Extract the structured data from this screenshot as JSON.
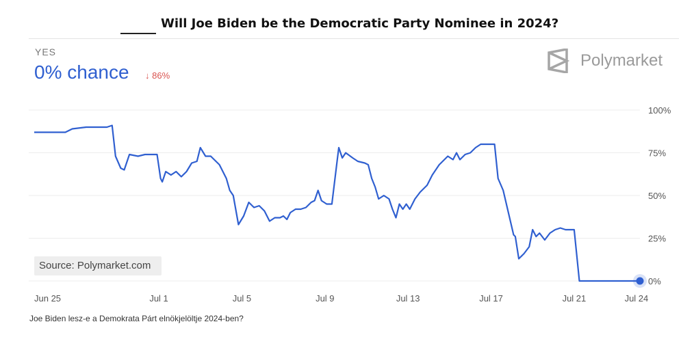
{
  "header": {
    "title": "Will Joe Biden be the Democratic Party Nominee in 2024?"
  },
  "market": {
    "outcome": "YES",
    "chance_text": "0% chance",
    "delta_text": "↓ 86%"
  },
  "brand": {
    "name": "Polymarket",
    "icon": "polymarket-logo-icon"
  },
  "source": {
    "text": "Source: Polymarket.com"
  },
  "caption": "Joe Biden lesz-e a Demokrata Párt elnökjelöltje 2024-ben?",
  "colors": {
    "line": "#2f5fd0",
    "delta": "#d9534f",
    "grid": "#ececec"
  },
  "chart_data": {
    "type": "line",
    "title": "Will Joe Biden be the Democratic Party Nominee in 2024?",
    "xlabel": "",
    "ylabel": "",
    "ylim": [
      0,
      100
    ],
    "y_ticks": [
      100,
      75,
      50,
      25,
      0
    ],
    "y_tick_labels": [
      "100%",
      "75%",
      "50%",
      "25%",
      "0%"
    ],
    "x_ticks": [
      "Jun 25",
      "Jul 1",
      "Jul 5",
      "Jul 9",
      "Jul 13",
      "Jul 17",
      "Jul 21",
      "Jul 24"
    ],
    "x_tick_dates": [
      "2024-06-25",
      "2024-07-01",
      "2024-07-05",
      "2024-07-09",
      "2024-07-13",
      "2024-07-17",
      "2024-07-21",
      "2024-07-24"
    ],
    "grid": true,
    "series": [
      {
        "values": [
          [
            "2024-06-25T00:00",
            87
          ],
          [
            "2024-06-26T12:00",
            87
          ],
          [
            "2024-06-26T20:00",
            89
          ],
          [
            "2024-06-27T12:00",
            90
          ],
          [
            "2024-06-28T12:00",
            90
          ],
          [
            "2024-06-28T18:00",
            91
          ],
          [
            "2024-06-28T22:00",
            73
          ],
          [
            "2024-06-29T04:00",
            66
          ],
          [
            "2024-06-29T08:00",
            65
          ],
          [
            "2024-06-29T14:00",
            74
          ],
          [
            "2024-06-30T00:00",
            73
          ],
          [
            "2024-06-30T08:00",
            74
          ],
          [
            "2024-06-30T14:00",
            74
          ],
          [
            "2024-06-30T22:00",
            74
          ],
          [
            "2024-07-01T02:00",
            60
          ],
          [
            "2024-07-01T04:00",
            58
          ],
          [
            "2024-07-01T08:00",
            64
          ],
          [
            "2024-07-01T14:00",
            62
          ],
          [
            "2024-07-01T20:00",
            64
          ],
          [
            "2024-07-02T02:00",
            61
          ],
          [
            "2024-07-02T08:00",
            64
          ],
          [
            "2024-07-02T14:00",
            69
          ],
          [
            "2024-07-02T20:00",
            70
          ],
          [
            "2024-07-03T00:00",
            78
          ],
          [
            "2024-07-03T06:00",
            73
          ],
          [
            "2024-07-03T12:00",
            73
          ],
          [
            "2024-07-03T22:00",
            68
          ],
          [
            "2024-07-04T06:00",
            60
          ],
          [
            "2024-07-04T10:00",
            53
          ],
          [
            "2024-07-04T14:00",
            50
          ],
          [
            "2024-07-04T20:00",
            33
          ],
          [
            "2024-07-05T02:00",
            38
          ],
          [
            "2024-07-05T08:00",
            46
          ],
          [
            "2024-07-05T14:00",
            43
          ],
          [
            "2024-07-05T20:00",
            44
          ],
          [
            "2024-07-06T02:00",
            41
          ],
          [
            "2024-07-06T08:00",
            35
          ],
          [
            "2024-07-06T14:00",
            37
          ],
          [
            "2024-07-06T20:00",
            37
          ],
          [
            "2024-07-07T00:00",
            38
          ],
          [
            "2024-07-07T04:00",
            36
          ],
          [
            "2024-07-07T08:00",
            40
          ],
          [
            "2024-07-07T14:00",
            42
          ],
          [
            "2024-07-07T20:00",
            42
          ],
          [
            "2024-07-08T02:00",
            43
          ],
          [
            "2024-07-08T08:00",
            46
          ],
          [
            "2024-07-08T12:00",
            47
          ],
          [
            "2024-07-08T16:00",
            53
          ],
          [
            "2024-07-08T20:00",
            47
          ],
          [
            "2024-07-09T02:00",
            45
          ],
          [
            "2024-07-09T08:00",
            45
          ],
          [
            "2024-07-09T14:00",
            70
          ],
          [
            "2024-07-09T16:00",
            78
          ],
          [
            "2024-07-09T20:00",
            72
          ],
          [
            "2024-07-10T00:00",
            75
          ],
          [
            "2024-07-10T08:00",
            72
          ],
          [
            "2024-07-10T14:00",
            70
          ],
          [
            "2024-07-10T22:00",
            69
          ],
          [
            "2024-07-11T02:00",
            68
          ],
          [
            "2024-07-11T06:00",
            60
          ],
          [
            "2024-07-11T10:00",
            55
          ],
          [
            "2024-07-11T14:00",
            48
          ],
          [
            "2024-07-11T20:00",
            50
          ],
          [
            "2024-07-12T02:00",
            48
          ],
          [
            "2024-07-12T06:00",
            42
          ],
          [
            "2024-07-12T10:00",
            37
          ],
          [
            "2024-07-12T14:00",
            45
          ],
          [
            "2024-07-12T18:00",
            42
          ],
          [
            "2024-07-12T22:00",
            45
          ],
          [
            "2024-07-13T02:00",
            42
          ],
          [
            "2024-07-13T08:00",
            48
          ],
          [
            "2024-07-13T14:00",
            52
          ],
          [
            "2024-07-13T22:00",
            56
          ],
          [
            "2024-07-14T04:00",
            62
          ],
          [
            "2024-07-14T12:00",
            68
          ],
          [
            "2024-07-14T22:00",
            73
          ],
          [
            "2024-07-15T04:00",
            71
          ],
          [
            "2024-07-15T08:00",
            75
          ],
          [
            "2024-07-15T12:00",
            71
          ],
          [
            "2024-07-15T18:00",
            74
          ],
          [
            "2024-07-16T00:00",
            75
          ],
          [
            "2024-07-16T06:00",
            78
          ],
          [
            "2024-07-16T12:00",
            80
          ],
          [
            "2024-07-16T20:00",
            80
          ],
          [
            "2024-07-17T04:00",
            80
          ],
          [
            "2024-07-17T08:00",
            60
          ],
          [
            "2024-07-17T14:00",
            53
          ],
          [
            "2024-07-17T20:00",
            40
          ],
          [
            "2024-07-18T02:00",
            27
          ],
          [
            "2024-07-18T04:00",
            26
          ],
          [
            "2024-07-18T08:00",
            13
          ],
          [
            "2024-07-18T14:00",
            16
          ],
          [
            "2024-07-18T20:00",
            20
          ],
          [
            "2024-07-19T00:00",
            30
          ],
          [
            "2024-07-19T04:00",
            26
          ],
          [
            "2024-07-19T08:00",
            28
          ],
          [
            "2024-07-19T14:00",
            24
          ],
          [
            "2024-07-19T20:00",
            28
          ],
          [
            "2024-07-20T02:00",
            30
          ],
          [
            "2024-07-20T08:00",
            31
          ],
          [
            "2024-07-20T14:00",
            30
          ],
          [
            "2024-07-21T00:00",
            30
          ],
          [
            "2024-07-21T06:00",
            0
          ],
          [
            "2024-07-22T00:00",
            0
          ],
          [
            "2024-07-23T00:00",
            0
          ],
          [
            "2024-07-24T04:00",
            0
          ]
        ]
      }
    ]
  }
}
